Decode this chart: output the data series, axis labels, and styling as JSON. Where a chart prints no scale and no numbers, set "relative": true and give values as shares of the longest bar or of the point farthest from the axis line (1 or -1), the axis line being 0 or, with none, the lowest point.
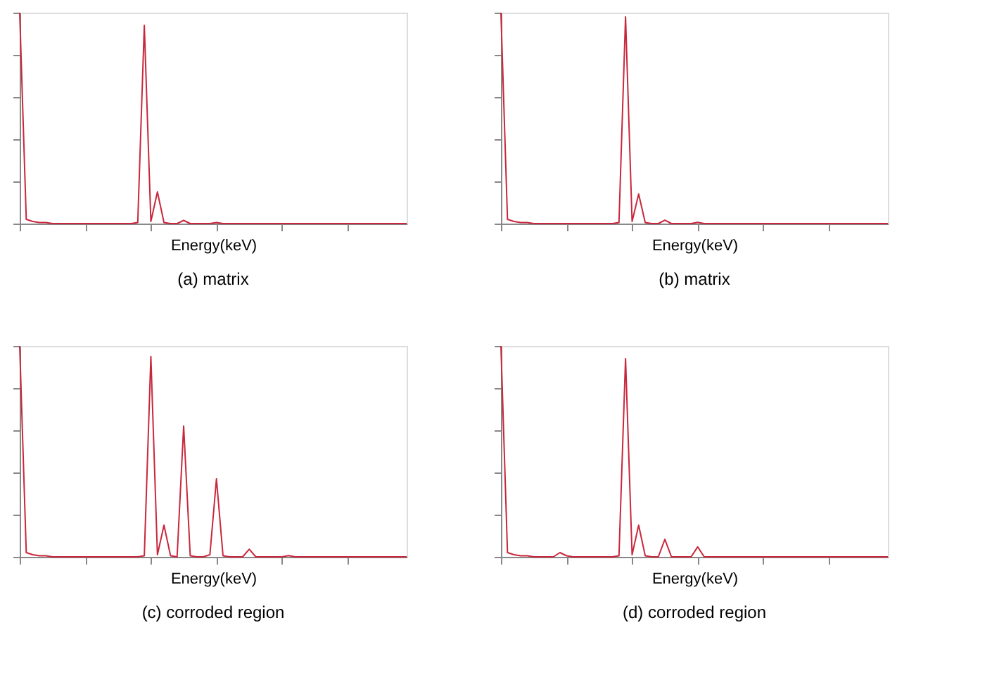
{
  "chart_data": [
    {
      "type": "line",
      "relative": true,
      "tick_labels": false,
      "grid": false,
      "xlabel": "Energy(keV)",
      "annotations": [
        "(a) matrix"
      ],
      "categories": [
        null,
        null,
        null,
        null,
        null,
        null,
        null,
        null,
        null,
        null,
        null,
        null,
        null,
        null,
        null,
        null,
        null,
        null,
        null,
        null,
        null,
        null,
        null,
        null,
        null,
        null,
        null,
        null,
        null,
        null,
        null,
        null,
        null,
        null,
        null,
        null,
        null,
        null,
        null,
        null,
        null,
        null,
        null,
        null,
        null,
        null,
        null,
        null,
        null,
        null,
        null,
        null,
        null,
        null,
        null,
        null,
        null,
        null,
        null,
        null
      ],
      "series": [
        {
          "color": "#c8283c",
          "values": [
            1,
            0.02,
            0.01,
            0.005,
            0.005,
            0,
            0,
            0,
            0,
            0,
            0,
            0,
            0,
            0,
            0,
            0,
            0,
            0,
            0.005,
            0.94,
            0.01,
            0.15,
            0.005,
            0,
            0,
            0.015,
            0,
            0,
            0,
            0,
            0.005,
            0,
            0,
            0,
            0,
            0,
            0,
            0,
            0,
            0,
            0,
            0,
            0,
            0,
            0,
            0,
            0,
            0,
            0,
            0,
            0,
            0,
            0,
            0,
            0,
            0,
            0,
            0,
            0,
            0
          ]
        }
      ]
    },
    {
      "type": "line",
      "relative": true,
      "tick_labels": false,
      "grid": false,
      "xlabel": "Energy(keV)",
      "annotations": [
        "(b) matrix"
      ],
      "categories": [
        null,
        null,
        null,
        null,
        null,
        null,
        null,
        null,
        null,
        null,
        null,
        null,
        null,
        null,
        null,
        null,
        null,
        null,
        null,
        null,
        null,
        null,
        null,
        null,
        null,
        null,
        null,
        null,
        null,
        null,
        null,
        null,
        null,
        null,
        null,
        null,
        null,
        null,
        null,
        null,
        null,
        null,
        null,
        null,
        null,
        null,
        null,
        null,
        null,
        null,
        null,
        null,
        null,
        null,
        null,
        null,
        null,
        null,
        null,
        null
      ],
      "series": [
        {
          "color": "#c8283c",
          "values": [
            1,
            0.02,
            0.01,
            0.005,
            0.005,
            0,
            0,
            0,
            0,
            0,
            0,
            0,
            0,
            0,
            0,
            0,
            0,
            0,
            0.005,
            0.98,
            0.01,
            0.14,
            0.005,
            0,
            0,
            0.016,
            0,
            0,
            0,
            0,
            0.006,
            0,
            0,
            0,
            0,
            0,
            0,
            0,
            0,
            0,
            0,
            0,
            0,
            0,
            0,
            0,
            0,
            0,
            0,
            0,
            0,
            0,
            0,
            0,
            0,
            0,
            0,
            0,
            0,
            0
          ]
        }
      ]
    },
    {
      "type": "line",
      "relative": true,
      "tick_labels": false,
      "grid": false,
      "xlabel": "Energy(keV)",
      "annotations": [
        "(c) corroded region"
      ],
      "categories": [
        null,
        null,
        null,
        null,
        null,
        null,
        null,
        null,
        null,
        null,
        null,
        null,
        null,
        null,
        null,
        null,
        null,
        null,
        null,
        null,
        null,
        null,
        null,
        null,
        null,
        null,
        null,
        null,
        null,
        null,
        null,
        null,
        null,
        null,
        null,
        null,
        null,
        null,
        null,
        null,
        null,
        null,
        null,
        null,
        null,
        null,
        null,
        null,
        null,
        null,
        null,
        null,
        null,
        null,
        null,
        null,
        null,
        null,
        null,
        null
      ],
      "series": [
        {
          "color": "#c8283c",
          "values": [
            1,
            0.02,
            0.01,
            0.005,
            0.005,
            0,
            0,
            0,
            0,
            0,
            0,
            0,
            0,
            0,
            0,
            0,
            0,
            0,
            0,
            0.005,
            0.95,
            0.01,
            0.15,
            0.005,
            0,
            0.62,
            0.005,
            0,
            0,
            0.01,
            0.37,
            0.005,
            0,
            0,
            0,
            0.036,
            0,
            0,
            0,
            0,
            0,
            0.006,
            0,
            0,
            0,
            0,
            0,
            0,
            0,
            0,
            0,
            0,
            0,
            0,
            0,
            0,
            0,
            0,
            0,
            0
          ]
        }
      ]
    },
    {
      "type": "line",
      "relative": true,
      "tick_labels": false,
      "grid": false,
      "xlabel": "Energy(keV)",
      "annotations": [
        "(d) corroded region"
      ],
      "categories": [
        null,
        null,
        null,
        null,
        null,
        null,
        null,
        null,
        null,
        null,
        null,
        null,
        null,
        null,
        null,
        null,
        null,
        null,
        null,
        null,
        null,
        null,
        null,
        null,
        null,
        null,
        null,
        null,
        null,
        null,
        null,
        null,
        null,
        null,
        null,
        null,
        null,
        null,
        null,
        null,
        null,
        null,
        null,
        null,
        null,
        null,
        null,
        null,
        null,
        null,
        null,
        null,
        null,
        null,
        null,
        null,
        null,
        null,
        null,
        null
      ],
      "series": [
        {
          "color": "#c8283c",
          "values": [
            1,
            0.02,
            0.01,
            0.005,
            0.005,
            0,
            0,
            0,
            0,
            0.02,
            0.005,
            0,
            0,
            0,
            0,
            0,
            0,
            0,
            0.005,
            0.94,
            0.01,
            0.15,
            0.005,
            0,
            0,
            0.083,
            0,
            0,
            0,
            0,
            0.047,
            0,
            0,
            0,
            0,
            0,
            0,
            0,
            0,
            0,
            0,
            0,
            0,
            0,
            0,
            0,
            0,
            0,
            0,
            0,
            0,
            0,
            0,
            0,
            0,
            0,
            0,
            0,
            0,
            0
          ]
        }
      ]
    }
  ]
}
